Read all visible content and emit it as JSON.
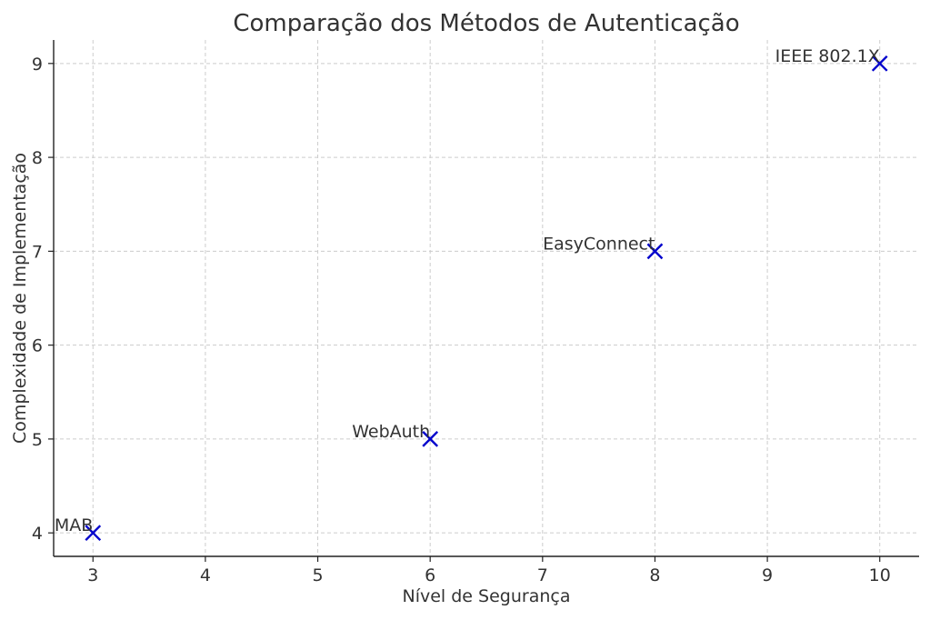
{
  "chart_data": {
    "type": "scatter",
    "title": "Comparação dos Métodos de Autenticação",
    "xlabel": "Nível de Segurança",
    "ylabel": "Complexidade de Implementação",
    "xlim": [
      2.65,
      10.35
    ],
    "ylim": [
      3.75,
      9.25
    ],
    "xticks": [
      "3",
      "4",
      "5",
      "6",
      "7",
      "8",
      "9",
      "10"
    ],
    "yticks": [
      "4",
      "5",
      "6",
      "7",
      "8",
      "9"
    ],
    "grid": true,
    "marker": "x",
    "colors": {
      "marker": "#0000cc",
      "grid": "#cccccc",
      "axis": "#222222",
      "text": "#333333"
    },
    "points": [
      {
        "label": "MAB",
        "x": 3,
        "y": 4
      },
      {
        "label": "WebAuth",
        "x": 6,
        "y": 5
      },
      {
        "label": "EasyConnect",
        "x": 8,
        "y": 7
      },
      {
        "label": "IEEE 802.1X",
        "x": 10,
        "y": 9
      }
    ]
  }
}
